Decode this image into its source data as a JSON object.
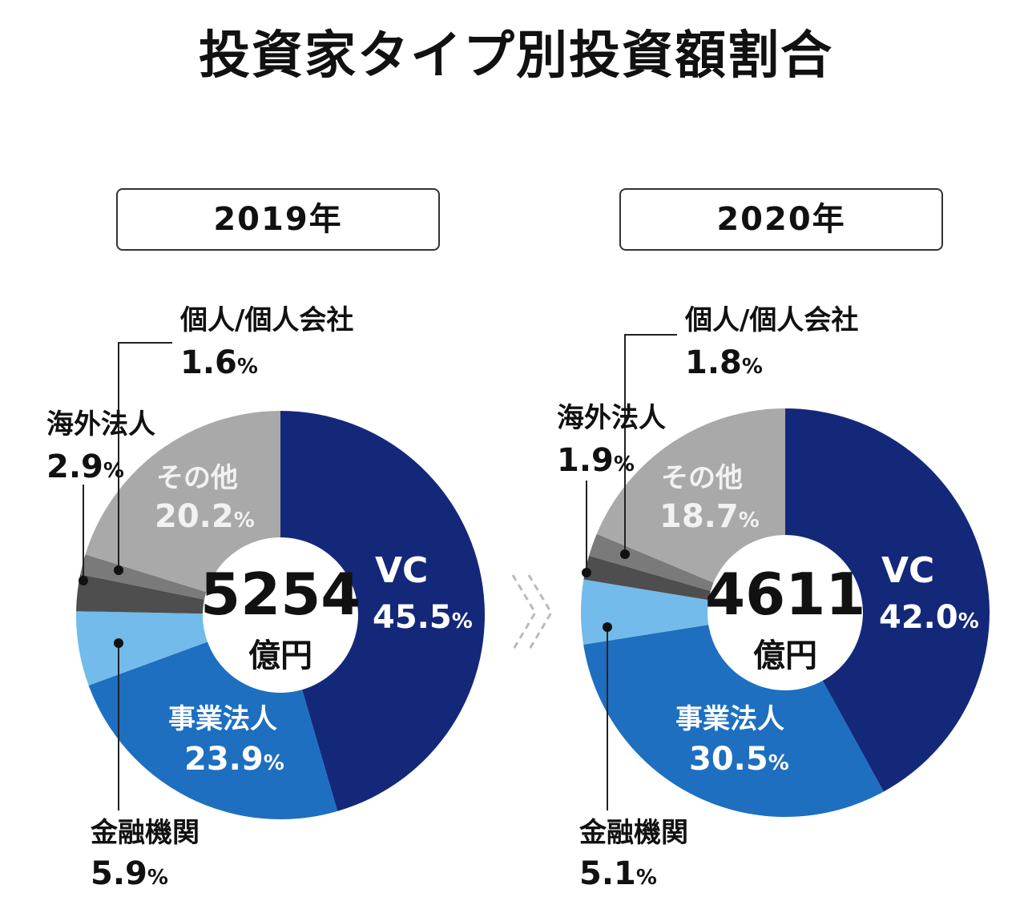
{
  "chart_data": [
    {
      "type": "pie",
      "donut": true,
      "year": "2019年",
      "total": "5254",
      "unit": "億円",
      "slices": [
        {
          "label": "VC",
          "value": 45.5,
          "pct": "45.5",
          "color": "#14287a"
        },
        {
          "label": "事業法人",
          "value": 23.9,
          "pct": "23.9",
          "color": "#1e6fc0"
        },
        {
          "label": "金融機関",
          "value": 5.9,
          "pct": "5.9",
          "color": "#72bbea"
        },
        {
          "label": "海外法人",
          "value": 2.9,
          "pct": "2.9",
          "color": "#4e4e4e"
        },
        {
          "label": "個人/個人会社",
          "value": 1.6,
          "pct": "1.6",
          "color": "#7a7a7a"
        },
        {
          "label": "その他",
          "value": 20.2,
          "pct": "20.2",
          "color": "#a9a9a9"
        }
      ]
    },
    {
      "type": "pie",
      "donut": true,
      "year": "2020年",
      "total": "4611",
      "unit": "億円",
      "slices": [
        {
          "label": "VC",
          "value": 42.0,
          "pct": "42.0",
          "color": "#14287a"
        },
        {
          "label": "事業法人",
          "value": 30.5,
          "pct": "30.5",
          "color": "#1e6fc0"
        },
        {
          "label": "金融機関",
          "value": 5.1,
          "pct": "5.1",
          "color": "#72bbea"
        },
        {
          "label": "海外法人",
          "value": 1.9,
          "pct": "1.9",
          "color": "#4e4e4e"
        },
        {
          "label": "個人/個人会社",
          "value": 1.8,
          "pct": "1.8",
          "color": "#7a7a7a"
        },
        {
          "label": "その他",
          "value": 18.7,
          "pct": "18.7",
          "color": "#a9a9a9"
        }
      ]
    }
  ],
  "title": "投資家タイプ別投資額割合",
  "percent_sign": "%",
  "arrow_icon": "double-chevron-right"
}
